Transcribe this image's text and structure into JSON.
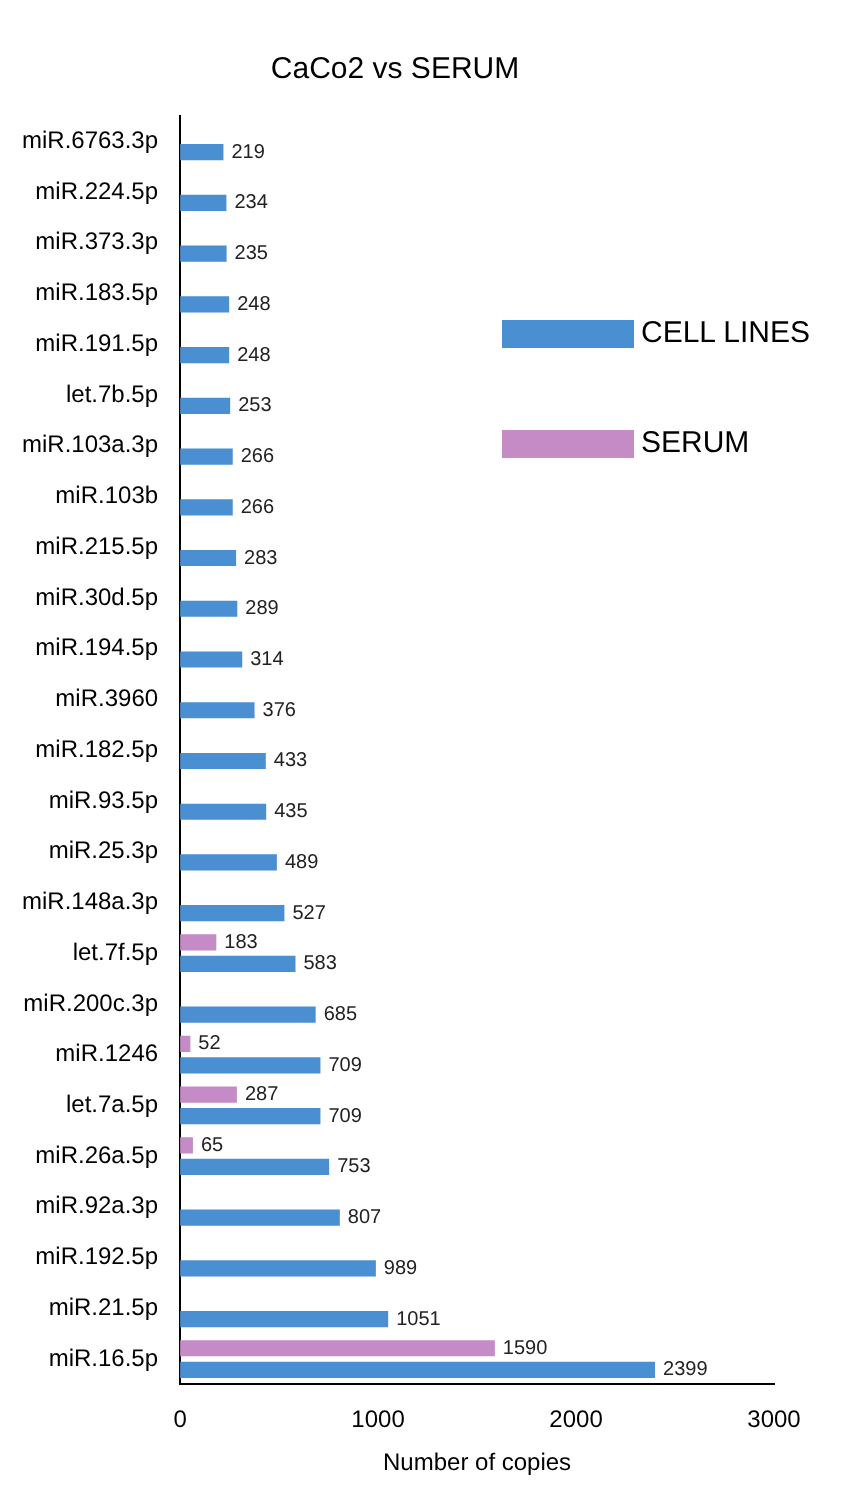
{
  "chart_data": {
    "type": "bar",
    "orientation": "horizontal",
    "title": "CaCo2 vs SERUM",
    "xlabel": "Number of copies",
    "categories": [
      "miR.6763.3p",
      "miR.224.5p",
      "miR.373.3p",
      "miR.183.5p",
      "miR.191.5p",
      "let.7b.5p",
      "miR.103a.3p",
      "miR.103b",
      "miR.215.5p",
      "miR.30d.5p",
      "miR.194.5p",
      "miR.3960",
      "miR.182.5p",
      "miR.93.5p",
      "miR.25.3p",
      "miR.148a.3p",
      "let.7f.5p",
      "miR.200c.3p",
      "miR.1246",
      "let.7a.5p",
      "miR.26a.5p",
      "miR.92a.3p",
      "miR.192.5p",
      "miR.21.5p",
      "miR.16.5p"
    ],
    "series": [
      {
        "name": "CELL LINES",
        "color": "#4a8fd2",
        "values": [
          219,
          234,
          235,
          248,
          248,
          253,
          266,
          266,
          283,
          289,
          314,
          376,
          433,
          435,
          489,
          527,
          583,
          685,
          709,
          709,
          753,
          807,
          989,
          1051,
          2399
        ]
      },
      {
        "name": "SERUM",
        "color": "#c48bc6",
        "values": [
          null,
          null,
          null,
          null,
          null,
          null,
          null,
          null,
          null,
          null,
          null,
          null,
          null,
          null,
          null,
          null,
          183,
          null,
          52,
          287,
          65,
          null,
          null,
          null,
          1590
        ]
      }
    ],
    "xlim": [
      0,
      3000
    ],
    "xticks": [
      0,
      1000,
      2000,
      3000
    ],
    "grid": false,
    "legend": "top right",
    "data_labels": true
  }
}
